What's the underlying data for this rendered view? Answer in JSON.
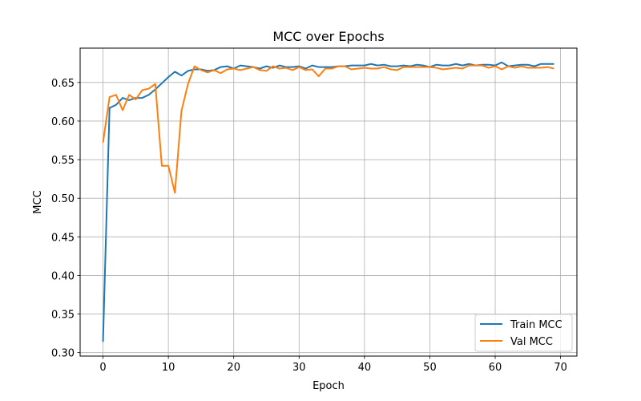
{
  "chart_data": {
    "type": "line",
    "title": "MCC over Epochs",
    "xlabel": "Epoch",
    "ylabel": "MCC",
    "xlim": [
      -3.5,
      72.5
    ],
    "ylim": [
      0.2955,
      0.6945
    ],
    "xticks": [
      0,
      10,
      20,
      30,
      40,
      50,
      60,
      70
    ],
    "yticks": [
      0.3,
      0.35,
      0.4,
      0.45,
      0.5,
      0.55,
      0.6,
      0.65
    ],
    "grid": true,
    "legend_position": "lower-right",
    "x": [
      0,
      1,
      2,
      3,
      4,
      5,
      6,
      7,
      8,
      9,
      10,
      11,
      12,
      13,
      14,
      15,
      16,
      17,
      18,
      19,
      20,
      21,
      22,
      23,
      24,
      25,
      26,
      27,
      28,
      29,
      30,
      31,
      32,
      33,
      34,
      35,
      36,
      37,
      38,
      39,
      40,
      41,
      42,
      43,
      44,
      45,
      46,
      47,
      48,
      49,
      50,
      51,
      52,
      53,
      54,
      55,
      56,
      57,
      58,
      59,
      60,
      61,
      62,
      63,
      64,
      65,
      66,
      67,
      68,
      69
    ],
    "series": [
      {
        "name": "Train MCC",
        "color": "#1f77b4",
        "values": [
          0.314,
          0.617,
          0.621,
          0.63,
          0.627,
          0.63,
          0.63,
          0.634,
          0.641,
          0.649,
          0.657,
          0.664,
          0.659,
          0.665,
          0.667,
          0.667,
          0.665,
          0.666,
          0.67,
          0.671,
          0.668,
          0.672,
          0.671,
          0.67,
          0.668,
          0.671,
          0.669,
          0.672,
          0.67,
          0.67,
          0.671,
          0.668,
          0.672,
          0.67,
          0.67,
          0.67,
          0.671,
          0.671,
          0.672,
          0.672,
          0.672,
          0.674,
          0.672,
          0.673,
          0.671,
          0.671,
          0.672,
          0.671,
          0.673,
          0.672,
          0.67,
          0.673,
          0.672,
          0.672,
          0.674,
          0.672,
          0.674,
          0.672,
          0.673,
          0.673,
          0.672,
          0.676,
          0.671,
          0.672,
          0.673,
          0.673,
          0.671,
          0.674,
          0.674,
          0.674
        ]
      },
      {
        "name": "Val MCC",
        "color": "#ff7f0e",
        "values": [
          0.572,
          0.631,
          0.634,
          0.614,
          0.634,
          0.628,
          0.64,
          0.642,
          0.648,
          0.542,
          0.542,
          0.507,
          0.613,
          0.648,
          0.671,
          0.666,
          0.663,
          0.666,
          0.662,
          0.667,
          0.668,
          0.666,
          0.668,
          0.67,
          0.666,
          0.665,
          0.671,
          0.668,
          0.669,
          0.666,
          0.67,
          0.666,
          0.667,
          0.658,
          0.668,
          0.668,
          0.671,
          0.671,
          0.667,
          0.668,
          0.669,
          0.668,
          0.668,
          0.67,
          0.667,
          0.666,
          0.67,
          0.67,
          0.67,
          0.67,
          0.67,
          0.669,
          0.667,
          0.668,
          0.669,
          0.668,
          0.672,
          0.672,
          0.672,
          0.669,
          0.671,
          0.667,
          0.671,
          0.669,
          0.671,
          0.669,
          0.669,
          0.669,
          0.67,
          0.668
        ]
      }
    ]
  }
}
